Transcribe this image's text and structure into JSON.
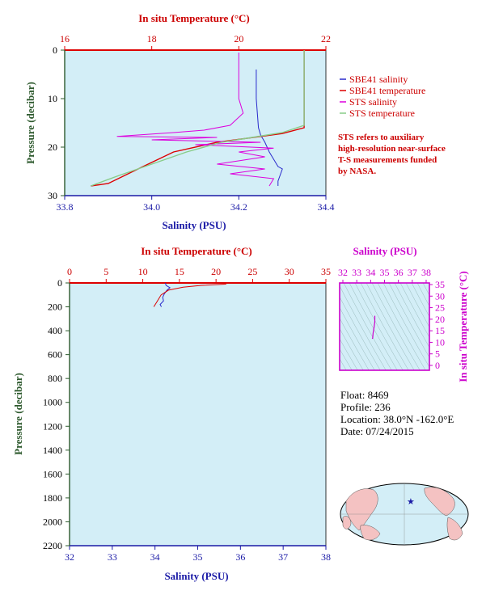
{
  "chart_data": [
    {
      "type": "line",
      "name_hint": "upper-profile",
      "y_axis": {
        "label": "Pressure (decibar)",
        "range": [
          0,
          30
        ],
        "ticks": [
          "0",
          "10",
          "20",
          "30"
        ]
      },
      "x_axis_bottom": {
        "label": "Salinity (PSU)",
        "range": [
          33.8,
          34.4
        ],
        "ticks": [
          "33.8",
          "34.0",
          "34.2",
          "34.4"
        ]
      },
      "x_axis_top": {
        "label": "In situ Temperature (°C)",
        "range": [
          16,
          22
        ],
        "ticks": [
          "16",
          "18",
          "20",
          "22"
        ]
      },
      "legend_position": "right",
      "legend": [
        "SBE41 salinity",
        "SBE41 temperature",
        "STS salinity",
        "STS temperature"
      ],
      "note": [
        "STS refers to auxiliary",
        "high-resolution near-surface",
        "T-S measurements funded",
        "by NASA."
      ],
      "series": [
        {
          "name": "SBE41 salinity",
          "color": "#2a2acc",
          "points": [
            [
              34.24,
              4
            ],
            [
              34.24,
              10
            ],
            [
              34.245,
              16
            ],
            [
              34.25,
              17.5
            ],
            [
              34.26,
              19
            ],
            [
              34.27,
              21
            ],
            [
              34.28,
              22.5
            ],
            [
              34.29,
              24
            ],
            [
              34.3,
              24.5
            ],
            [
              34.29,
              27
            ],
            [
              34.29,
              28
            ]
          ]
        },
        {
          "name": "SBE41 temperature",
          "color": "#dd0000",
          "points": [
            [
              21.5,
              0
            ],
            [
              21.5,
              16
            ],
            [
              21.0,
              17.2
            ],
            [
              19.5,
              19.0
            ],
            [
              18.5,
              21.0
            ],
            [
              17.8,
              24.0
            ],
            [
              17.0,
              27.5
            ],
            [
              16.6,
              28
            ]
          ]
        },
        {
          "name": "STS salinity",
          "color": "#dd00dd",
          "points": [
            [
              34.2,
              0.5
            ],
            [
              34.2,
              4
            ],
            [
              34.2,
              10
            ],
            [
              34.21,
              13
            ],
            [
              34.18,
              15.5
            ],
            [
              34.12,
              16.5
            ],
            [
              34.05,
              17.0
            ],
            [
              33.92,
              17.8
            ],
            [
              34.15,
              18.0
            ],
            [
              34.0,
              18.5
            ],
            [
              34.25,
              19.0
            ],
            [
              34.1,
              19.5
            ],
            [
              34.28,
              20.2
            ],
            [
              34.2,
              21.0
            ],
            [
              34.26,
              22.0
            ],
            [
              34.15,
              23.5
            ],
            [
              34.26,
              24.5
            ],
            [
              34.18,
              25.5
            ],
            [
              34.28,
              26.5
            ],
            [
              34.27,
              28
            ]
          ]
        },
        {
          "name": "STS temperature",
          "color": "#88cc88",
          "points": [
            [
              21.5,
              0
            ],
            [
              21.5,
              15.5
            ],
            [
              21.0,
              17.0
            ],
            [
              20.3,
              18.0
            ],
            [
              19.6,
              19.0
            ],
            [
              18.8,
              21.0
            ],
            [
              18.0,
              23.5
            ],
            [
              17.2,
              26.0
            ],
            [
              16.6,
              28
            ]
          ]
        }
      ]
    },
    {
      "type": "line",
      "name_hint": "lower-profile",
      "y_axis": {
        "label": "Pressure (decibar)",
        "range": [
          0,
          2200
        ],
        "ticks": [
          "0",
          "200",
          "400",
          "600",
          "800",
          "1000",
          "1200",
          "1400",
          "1600",
          "1800",
          "2000",
          "2200"
        ]
      },
      "x_axis_bottom": {
        "label": "Salinity (PSU)",
        "range": [
          32,
          38
        ],
        "ticks": [
          "32",
          "33",
          "34",
          "35",
          "36",
          "37",
          "38"
        ]
      },
      "x_axis_top": {
        "label": "In situ Temperature (°C)",
        "range": [
          0,
          35
        ],
        "ticks": [
          "0",
          "5",
          "10",
          "15",
          "20",
          "25",
          "30",
          "35"
        ]
      },
      "series": [
        {
          "name": "SBE41 salinity",
          "color": "#2a2acc",
          "points": [
            [
              34.24,
              0
            ],
            [
              34.25,
              10
            ],
            [
              34.26,
              20
            ],
            [
              34.35,
              40
            ],
            [
              34.28,
              60
            ],
            [
              34.22,
              90
            ],
            [
              34.18,
              120
            ],
            [
              34.2,
              150
            ],
            [
              34.12,
              180
            ],
            [
              34.15,
              200
            ]
          ]
        },
        {
          "name": "SBE41 temperature",
          "color": "#dd0000",
          "points": [
            [
              21.5,
              0
            ],
            [
              21.3,
              10
            ],
            [
              18.0,
              20
            ],
            [
              15.5,
              35
            ],
            [
              13.5,
              60
            ],
            [
              12.5,
              100
            ],
            [
              12.0,
              150
            ],
            [
              11.5,
              200
            ]
          ]
        }
      ]
    },
    {
      "type": "scatter",
      "name_hint": "ts-diagram",
      "x_axis_top": {
        "label": "Salinity (PSU)",
        "range": [
          32,
          38
        ],
        "ticks": [
          "32",
          "33",
          "34",
          "35",
          "36",
          "37",
          "38"
        ]
      },
      "y_axis_right": {
        "label": "In situ Temperature (°C)",
        "range": [
          0,
          35
        ],
        "ticks": [
          "0",
          "5",
          "10",
          "15",
          "20",
          "25",
          "30",
          "35"
        ]
      },
      "points": [
        [
          34.3,
          21.5
        ],
        [
          34.3,
          19.0
        ],
        [
          34.25,
          16.5
        ],
        [
          34.18,
          14.0
        ],
        [
          34.15,
          12.0
        ],
        [
          34.12,
          11.5
        ]
      ]
    }
  ],
  "info": {
    "float": "Float:  8469",
    "profile": "Profile:  236",
    "location": "Location:  38.0°N  -162.0°E",
    "date": "Date:  07/24/2015"
  },
  "map": {
    "marker_lat": 38.0,
    "marker_lon": -162.0
  },
  "colors": {
    "plot_bg": "#d3eef7",
    "temp_axis": "#dd0000",
    "sal_axis": "#1a1aa6",
    "ts_axis": "#cc00cc",
    "land": "#f4c2c2"
  }
}
